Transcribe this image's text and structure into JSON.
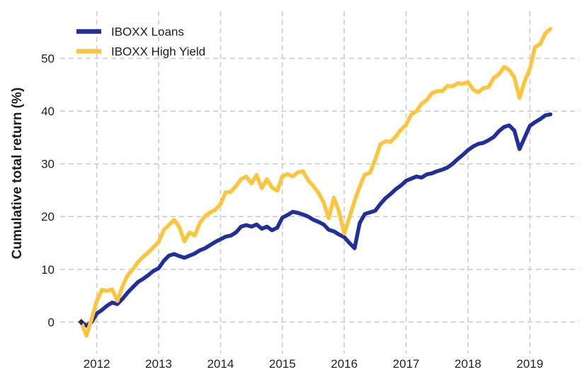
{
  "chart_data": {
    "type": "line",
    "ylabel": "Cumulative total return (%)",
    "x_ticks": [
      2012,
      2013,
      2014,
      2015,
      2016,
      2017,
      2018,
      2019
    ],
    "y_ticks": [
      0,
      10,
      20,
      30,
      40,
      50
    ],
    "xlim": [
      2011.4,
      2019.8
    ],
    "ylim": [
      -5.5,
      59
    ],
    "grid": true,
    "legend_position": "top-left",
    "colors": {
      "grid": "#cccccc",
      "text": "#1f1f1f",
      "start_marker": "#232d63",
      "background": "#ffffff"
    },
    "dates": [
      "2011-09",
      "2011-10",
      "2011-11",
      "2011-12",
      "2012-01",
      "2012-02",
      "2012-03",
      "2012-04",
      "2012-05",
      "2012-06",
      "2012-07",
      "2012-08",
      "2012-09",
      "2012-10",
      "2012-11",
      "2012-12",
      "2013-01",
      "2013-02",
      "2013-03",
      "2013-04",
      "2013-05",
      "2013-06",
      "2013-07",
      "2013-08",
      "2013-09",
      "2013-10",
      "2013-11",
      "2013-12",
      "2014-01",
      "2014-02",
      "2014-03",
      "2014-04",
      "2014-05",
      "2014-06",
      "2014-07",
      "2014-08",
      "2014-09",
      "2014-10",
      "2014-11",
      "2014-12",
      "2015-01",
      "2015-02",
      "2015-03",
      "2015-04",
      "2015-05",
      "2015-06",
      "2015-07",
      "2015-08",
      "2015-09",
      "2015-10",
      "2015-11",
      "2015-12",
      "2016-01",
      "2016-02",
      "2016-03",
      "2016-04",
      "2016-05",
      "2016-06",
      "2016-07",
      "2016-08",
      "2016-09",
      "2016-10",
      "2016-11",
      "2016-12",
      "2017-01",
      "2017-02",
      "2017-03",
      "2017-04",
      "2017-05",
      "2017-06",
      "2017-07",
      "2017-08",
      "2017-09",
      "2017-10",
      "2017-11",
      "2017-12",
      "2018-01",
      "2018-02",
      "2018-03",
      "2018-04",
      "2018-05",
      "2018-06",
      "2018-07",
      "2018-08",
      "2018-09",
      "2018-10",
      "2018-11",
      "2018-12",
      "2019-01",
      "2019-02",
      "2019-03",
      "2019-04"
    ],
    "series": [
      {
        "name": "IBOXX Loans",
        "color": "#202f9c",
        "values": [
          0.0,
          -0.7,
          0.0,
          1.6,
          2.3,
          3.1,
          3.7,
          3.4,
          4.4,
          5.6,
          6.6,
          7.6,
          8.2,
          8.9,
          9.7,
          10.2,
          11.6,
          12.6,
          12.9,
          12.5,
          12.2,
          12.6,
          13.0,
          13.6,
          14.0,
          14.6,
          15.2,
          15.7,
          16.2,
          16.4,
          17.0,
          18.1,
          18.4,
          18.1,
          18.5,
          17.7,
          18.1,
          17.4,
          17.9,
          19.8,
          20.3,
          20.9,
          20.7,
          20.4,
          20.0,
          19.4,
          19.0,
          18.5,
          17.5,
          17.2,
          16.6,
          16.1,
          15.0,
          14.0,
          18.8,
          20.5,
          20.8,
          21.1,
          22.4,
          23.5,
          24.3,
          25.2,
          25.9,
          26.8,
          27.2,
          27.6,
          27.4,
          28.0,
          28.2,
          28.6,
          28.9,
          29.3,
          30.0,
          30.9,
          31.7,
          32.6,
          33.3,
          33.8,
          34.0,
          34.5,
          35.1,
          36.2,
          37.0,
          37.3,
          36.3,
          32.8,
          35.0,
          37.2,
          37.9,
          38.5,
          39.2,
          39.4
        ]
      },
      {
        "name": "IBOXX High Yield",
        "color": "#fbc53d",
        "values": [
          0.0,
          -2.6,
          0.6,
          4.0,
          6.1,
          5.9,
          6.2,
          4.0,
          6.8,
          8.9,
          10.0,
          11.4,
          12.4,
          13.2,
          14.2,
          15.2,
          17.5,
          18.4,
          19.4,
          18.0,
          15.3,
          17.0,
          16.4,
          18.8,
          20.1,
          20.8,
          21.3,
          22.4,
          24.6,
          24.7,
          25.8,
          27.1,
          27.6,
          26.3,
          27.9,
          25.4,
          27.1,
          25.5,
          24.9,
          27.6,
          28.1,
          27.6,
          28.4,
          28.6,
          26.9,
          25.8,
          24.5,
          22.7,
          19.7,
          23.6,
          20.9,
          16.8,
          19.8,
          23.0,
          25.7,
          28.0,
          28.3,
          30.8,
          33.7,
          34.3,
          34.2,
          35.2,
          36.5,
          37.4,
          39.4,
          40.0,
          41.4,
          42.1,
          43.4,
          43.8,
          43.8,
          44.8,
          44.7,
          45.3,
          45.2,
          45.5,
          44.1,
          43.6,
          44.4,
          44.6,
          46.3,
          47.0,
          48.4,
          47.8,
          46.4,
          42.5,
          45.7,
          48.0,
          52.2,
          52.7,
          54.8,
          55.6
        ]
      }
    ]
  }
}
